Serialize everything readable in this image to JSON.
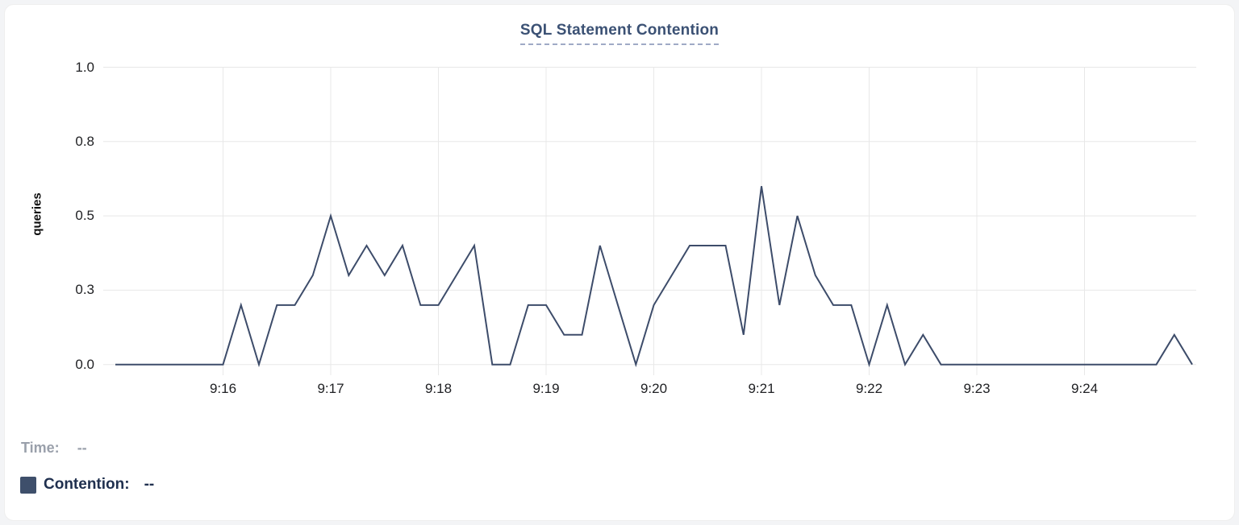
{
  "header": {
    "title": "SQL Statement Contention"
  },
  "colors": {
    "line": "#3d4c6a",
    "grid": "#e8e8e8",
    "title": "#3b5174",
    "title_underline": "#9faac6",
    "tick_text": "#202124",
    "legend_muted": "#9aa0ab",
    "legend_text": "#20304f",
    "swatch": "#3e4f6b"
  },
  "legend": {
    "time_label": "Time:",
    "time_value": "--",
    "series_label": "Contention:",
    "series_value": "--"
  },
  "chart_data": {
    "type": "line",
    "title": "SQL Statement Contention",
    "xlabel": "",
    "ylabel": "queries",
    "ylim": [
      0,
      1.0
    ],
    "grid": true,
    "x_range": [
      "9:15:00",
      "9:25:00"
    ],
    "sample_interval_seconds": 10,
    "y_ticks": [
      {
        "label": "1.0",
        "value": 1.0
      },
      {
        "label": "0.8",
        "value": 0.75
      },
      {
        "label": "0.5",
        "value": 0.5
      },
      {
        "label": "0.3",
        "value": 0.25
      },
      {
        "label": "0.0",
        "value": 0.0
      }
    ],
    "x_ticks": [
      {
        "label": "9:16",
        "sec": 60
      },
      {
        "label": "9:17",
        "sec": 120
      },
      {
        "label": "9:18",
        "sec": 180
      },
      {
        "label": "9:19",
        "sec": 240
      },
      {
        "label": "9:20",
        "sec": 300
      },
      {
        "label": "9:21",
        "sec": 360
      },
      {
        "label": "9:22",
        "sec": 420
      },
      {
        "label": "9:23",
        "sec": 480
      },
      {
        "label": "9:24",
        "sec": 540
      }
    ],
    "series": [
      {
        "name": "Contention",
        "unit": "queries",
        "times": [
          "9:15:00",
          "9:15:10",
          "9:15:20",
          "9:15:30",
          "9:15:40",
          "9:15:50",
          "9:16:00",
          "9:16:10",
          "9:16:20",
          "9:16:30",
          "9:16:40",
          "9:16:50",
          "9:17:00",
          "9:17:10",
          "9:17:20",
          "9:17:30",
          "9:17:40",
          "9:17:50",
          "9:18:00",
          "9:18:10",
          "9:18:20",
          "9:18:30",
          "9:18:40",
          "9:18:50",
          "9:19:00",
          "9:19:10",
          "9:19:20",
          "9:19:30",
          "9:19:40",
          "9:19:50",
          "9:20:00",
          "9:20:10",
          "9:20:20",
          "9:20:30",
          "9:20:40",
          "9:20:50",
          "9:21:00",
          "9:21:10",
          "9:21:20",
          "9:21:30",
          "9:21:40",
          "9:21:50",
          "9:22:00",
          "9:22:10",
          "9:22:20",
          "9:22:30",
          "9:22:40",
          "9:22:50",
          "9:23:00",
          "9:23:10",
          "9:23:20",
          "9:23:30",
          "9:23:40",
          "9:23:50",
          "9:24:00",
          "9:24:10",
          "9:24:20",
          "9:24:30",
          "9:24:40",
          "9:24:50",
          "9:25:00"
        ],
        "values": [
          0,
          0,
          0,
          0,
          0,
          0,
          0,
          0.2,
          0,
          0.2,
          0.2,
          0.3,
          0.5,
          0.3,
          0.4,
          0.3,
          0.4,
          0.2,
          0.2,
          0.3,
          0.4,
          0,
          0,
          0.2,
          0.2,
          0.1,
          0.1,
          0.4,
          0.2,
          0,
          0.2,
          0.3,
          0.4,
          0.4,
          0.4,
          0.1,
          0.6,
          0.2,
          0.5,
          0.3,
          0.2,
          0.2,
          0,
          0.2,
          0,
          0.1,
          0,
          0,
          0,
          0,
          0,
          0,
          0,
          0,
          0,
          0,
          0,
          0,
          0,
          0.1,
          0
        ]
      }
    ]
  }
}
